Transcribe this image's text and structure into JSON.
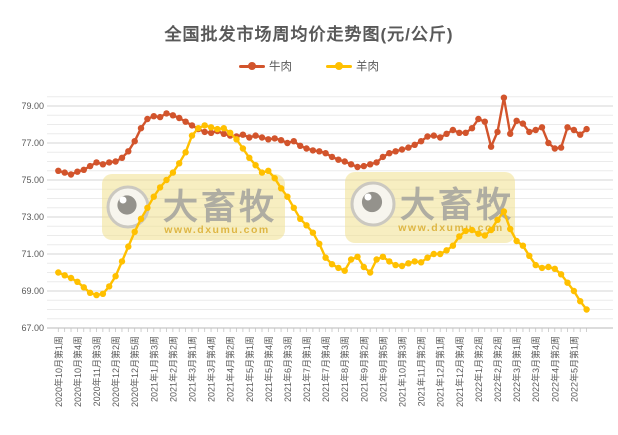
{
  "title": "全国批发市场周均价走势图(元/公斤)",
  "watermark": {
    "brand": "大畜牧",
    "url": "www.dxumu.com"
  },
  "chart_data": {
    "type": "line",
    "title": "全国批发市场周均价走势图(元/公斤)",
    "unit": "元/公斤",
    "legend_position": "top",
    "grid": "horizontal, minor every 0.5, major every 2.0",
    "ylim": [
      67,
      79.5
    ],
    "y_tick_labels": [
      "79.00",
      "77.00",
      "75.00",
      "73.00",
      "71.00",
      "69.00",
      "67.00"
    ],
    "x_label_every_n_points": 3,
    "x_tick_labels": [
      "2020年10月第1周",
      "2020年10月第4周",
      "2020年11月第3周",
      "2020年12月第2周",
      "2020年12月第5周",
      "2021年1月第3周",
      "2021年2月第2周",
      "2021年3月第1周",
      "2021年3月第4周",
      "2021年4月第2周",
      "2021年5月第1周",
      "2021年5月第4周",
      "2021年6月第3周",
      "2021年7月第1周",
      "2021年7月第4周",
      "2021年8月第3周",
      "2021年9月第2周",
      "2021年9月第5周",
      "2021年10月第3周",
      "2021年11月第2周",
      "2021年12月第1周",
      "2021年12月第4周",
      "2022年1月第2周",
      "2022年2月第2周",
      "2022年3月第1周",
      "2022年3月第4周",
      "2022年4月第2周",
      "2022年5月第1周"
    ],
    "series": [
      {
        "id": "beef",
        "name": "牛肉",
        "color": "#d2542c",
        "values": [
          75.5,
          75.4,
          75.3,
          75.45,
          75.55,
          75.75,
          75.95,
          75.85,
          75.95,
          76.0,
          76.2,
          76.55,
          77.1,
          77.8,
          78.3,
          78.45,
          78.4,
          78.6,
          78.5,
          78.35,
          78.15,
          77.95,
          77.75,
          77.6,
          77.55,
          77.65,
          77.5,
          77.4,
          77.35,
          77.45,
          77.3,
          77.4,
          77.3,
          77.2,
          77.25,
          77.15,
          77.0,
          77.1,
          76.85,
          76.7,
          76.6,
          76.55,
          76.45,
          76.25,
          76.1,
          76.0,
          75.85,
          75.7,
          75.75,
          75.85,
          75.95,
          76.25,
          76.45,
          76.55,
          76.65,
          76.75,
          76.9,
          77.1,
          77.35,
          77.4,
          77.3,
          77.5,
          77.7,
          77.55,
          77.55,
          77.8,
          78.3,
          78.15,
          76.8,
          77.6,
          79.45,
          77.5,
          78.2,
          78.05,
          77.6,
          77.7,
          77.85,
          77.0,
          76.7,
          76.75,
          77.85,
          77.7,
          77.45,
          77.75
        ]
      },
      {
        "id": "mutton",
        "name": "羊肉",
        "color": "#ffc000",
        "values": [
          70.0,
          69.85,
          69.7,
          69.5,
          69.2,
          68.9,
          68.78,
          68.85,
          69.25,
          69.8,
          70.6,
          71.4,
          72.2,
          72.9,
          73.5,
          74.1,
          74.6,
          75.0,
          75.4,
          75.9,
          76.5,
          77.4,
          77.8,
          77.95,
          77.85,
          77.75,
          77.8,
          77.55,
          77.2,
          76.7,
          76.2,
          75.8,
          75.4,
          75.5,
          75.1,
          74.55,
          74.1,
          73.5,
          72.9,
          72.55,
          72.15,
          71.55,
          70.8,
          70.45,
          70.25,
          70.1,
          70.7,
          70.85,
          70.3,
          70.0,
          70.7,
          70.85,
          70.6,
          70.4,
          70.35,
          70.5,
          70.6,
          70.55,
          70.8,
          71.0,
          71.0,
          71.2,
          71.45,
          71.95,
          72.25,
          72.3,
          72.1,
          72.0,
          72.3,
          72.85,
          73.3,
          72.35,
          71.7,
          71.45,
          70.9,
          70.4,
          70.25,
          70.3,
          70.2,
          69.9,
          69.45,
          69.0,
          68.45,
          68.0
        ]
      }
    ]
  }
}
